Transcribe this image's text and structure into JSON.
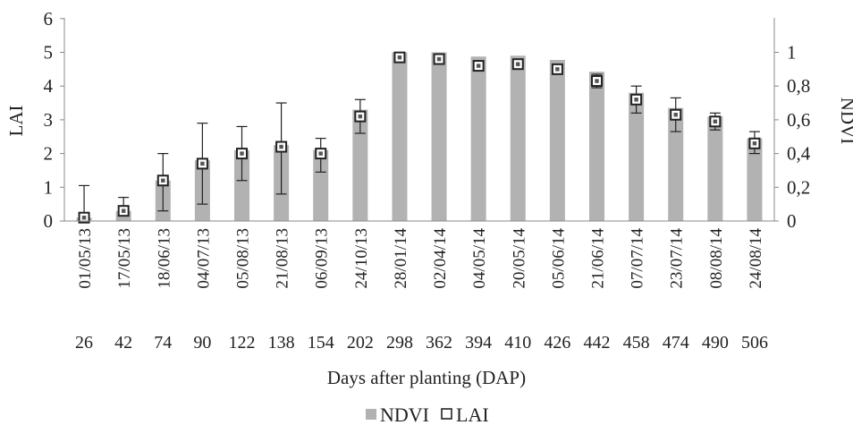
{
  "chart_data": {
    "type": "bar+scatter",
    "title": "",
    "xlabel": "Days after planting (DAP)",
    "ylabel_left": "LAI",
    "ylabel_right": "NDVI",
    "ylim_left": [
      0,
      6
    ],
    "ylim_right": [
      0,
      1.1
    ],
    "yticks_left": [
      "0",
      "1",
      "2",
      "3",
      "4",
      "5",
      "6"
    ],
    "yticks_right": [
      "0",
      "0,2",
      "0,4",
      "0,6",
      "0,8",
      "1"
    ],
    "dates": [
      "01/05/13",
      "17/05/13",
      "18/06/13",
      "04/07/13",
      "05/08/13",
      "21/08/13",
      "06/09/13",
      "24/10/13",
      "28/01/14",
      "02/04/14",
      "04/05/14",
      "20/05/14",
      "05/06/14",
      "21/06/14",
      "07/07/14",
      "23/07/14",
      "08/08/14",
      "24/08/14"
    ],
    "dap": [
      "26",
      "42",
      "74",
      "90",
      "122",
      "138",
      "154",
      "202",
      "298",
      "362",
      "394",
      "410",
      "426",
      "442",
      "458",
      "474",
      "490",
      "506"
    ],
    "series": [
      {
        "name": "NDVI",
        "type": "bar",
        "axis": "right",
        "color": "#b2b2b2",
        "values": [
          0.02,
          0.06,
          0.24,
          0.36,
          0.42,
          0.45,
          0.42,
          0.66,
          1.0,
          1.0,
          0.975,
          0.98,
          0.955,
          0.885,
          0.76,
          0.67,
          0.62,
          0.49
        ]
      },
      {
        "name": "LAI",
        "type": "scatter",
        "axis": "left",
        "marker": "hollow-square",
        "values": [
          0.1,
          0.3,
          1.2,
          1.7,
          2.0,
          2.2,
          2.0,
          3.1,
          4.85,
          4.8,
          4.6,
          4.65,
          4.5,
          4.15,
          3.6,
          3.15,
          2.95,
          2.3
        ],
        "err_low": [
          0.1,
          0.3,
          0.3,
          0.5,
          1.2,
          0.8,
          1.45,
          2.6,
          4.85,
          4.8,
          4.6,
          4.65,
          4.5,
          3.95,
          3.2,
          2.65,
          2.7,
          2.0
        ],
        "err_high": [
          1.05,
          0.7,
          2.0,
          2.9,
          2.8,
          3.5,
          2.45,
          3.6,
          4.85,
          4.8,
          4.6,
          4.65,
          4.5,
          4.35,
          4.0,
          3.65,
          3.2,
          2.65
        ]
      }
    ],
    "legend_position": "bottom",
    "grid": false
  }
}
